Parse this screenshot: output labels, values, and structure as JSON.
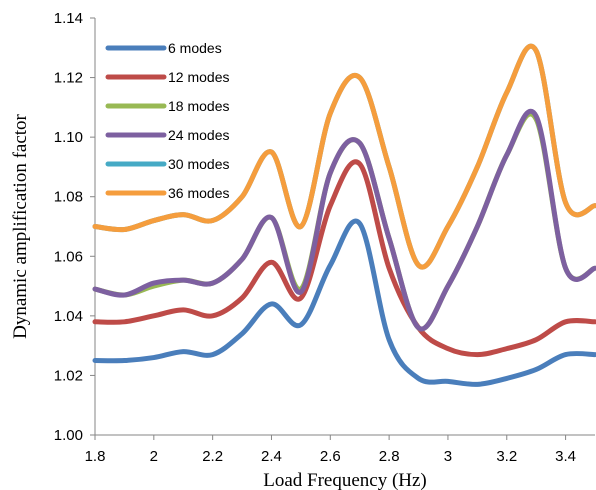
{
  "chart_data": {
    "type": "line",
    "title": "",
    "xlabel": "Load Frequency (Hz)",
    "ylabel": "Dynamic amplification factor",
    "xlim": [
      1.8,
      3.5
    ],
    "ylim": [
      1.0,
      1.14
    ],
    "xticks": [
      1.8,
      2,
      2.2,
      2.4,
      2.6,
      2.8,
      3,
      3.2,
      3.4
    ],
    "xtick_labels": [
      "1.8",
      "2",
      "2.2",
      "2.4",
      "2.6",
      "2.8",
      "3",
      "3.2",
      "3.4"
    ],
    "yticks": [
      1.0,
      1.02,
      1.04,
      1.06,
      1.08,
      1.1,
      1.12,
      1.14
    ],
    "ytick_labels": [
      "1.00",
      "1.02",
      "1.04",
      "1.06",
      "1.08",
      "1.10",
      "1.12",
      "1.14"
    ],
    "grid": false,
    "legend_position": "top-left",
    "x": [
      1.8,
      1.9,
      2.0,
      2.1,
      2.2,
      2.3,
      2.4,
      2.5,
      2.6,
      2.7,
      2.8,
      2.9,
      3.0,
      3.1,
      3.2,
      3.3,
      3.4,
      3.5
    ],
    "series": [
      {
        "name": "6 modes",
        "color": "#4a7ebb",
        "values": [
          1.025,
          1.025,
          1.026,
          1.028,
          1.027,
          1.034,
          1.044,
          1.037,
          1.057,
          1.071,
          1.032,
          1.019,
          1.018,
          1.017,
          1.019,
          1.022,
          1.027,
          1.027
        ]
      },
      {
        "name": "12 modes",
        "color": "#be4b48",
        "values": [
          1.038,
          1.038,
          1.04,
          1.042,
          1.04,
          1.046,
          1.058,
          1.046,
          1.077,
          1.091,
          1.056,
          1.036,
          1.029,
          1.027,
          1.029,
          1.032,
          1.038,
          1.038
        ]
      },
      {
        "name": "18 modes",
        "color": "#98b954",
        "values": [
          1.049,
          1.047,
          1.05,
          1.052,
          1.051,
          1.059,
          1.073,
          1.049,
          1.088,
          1.098,
          1.066,
          1.036,
          1.05,
          1.07,
          1.094,
          1.106,
          1.056,
          1.056
        ]
      },
      {
        "name": "24 modes",
        "color": "#7d60a0",
        "values": [
          1.049,
          1.047,
          1.051,
          1.052,
          1.051,
          1.059,
          1.073,
          1.048,
          1.088,
          1.098,
          1.066,
          1.036,
          1.05,
          1.07,
          1.094,
          1.107,
          1.056,
          1.056
        ]
      },
      {
        "name": "30 modes",
        "color": "#46aac5",
        "values": [
          1.07,
          1.069,
          1.072,
          1.074,
          1.072,
          1.08,
          1.095,
          1.07,
          1.108,
          1.12,
          1.09,
          1.057,
          1.07,
          1.09,
          1.115,
          1.129,
          1.078,
          1.077
        ]
      },
      {
        "name": "36 modes",
        "color": "#f59d3d",
        "values": [
          1.07,
          1.069,
          1.072,
          1.074,
          1.072,
          1.08,
          1.095,
          1.07,
          1.108,
          1.12,
          1.09,
          1.057,
          1.07,
          1.09,
          1.115,
          1.129,
          1.078,
          1.077
        ]
      }
    ]
  }
}
